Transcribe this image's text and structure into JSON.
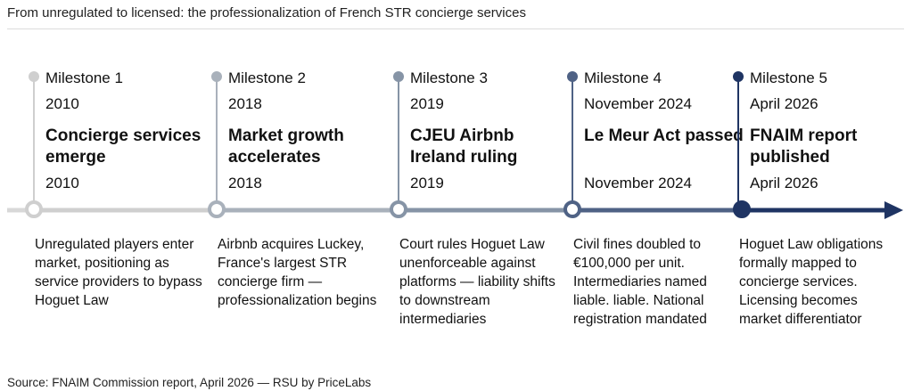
{
  "title": "From unregulated to licensed: the professionalization of French STR concierge services",
  "source": "Source: FNAIM Commission report, April 2026 — RSU by PriceLabs",
  "colors": {
    "m1": "#cfcfcf",
    "m2": "#a9b1bb",
    "m3": "#8694a6",
    "m4": "#4f6285",
    "m5": "#1f3463",
    "arrow": "#1f3463"
  },
  "milestones": [
    {
      "label": "Milestone 1",
      "year": "2010",
      "heading": "Concierge services emerge",
      "date": "2010",
      "description": "Unregulated players enter market, positioning as service providers to bypass Hoguet Law"
    },
    {
      "label": "Milestone 2",
      "year": "2018",
      "heading": "Market growth accelerates",
      "date": "2018",
      "description": "Airbnb acquires Luckey, France's largest STR concierge firm — professionalization begins"
    },
    {
      "label": "Milestone 3",
      "year": "2019",
      "heading": "CJEU Airbnb Ireland ruling",
      "date": "2019",
      "description": "Court rules Hoguet Law unenforceable against platforms — liability shifts to downstream intermediaries"
    },
    {
      "label": "Milestone 4",
      "year": "November 2024",
      "heading": "Le Meur Act passed",
      "date": "November 2024",
      "description": "Civil fines doubled to €100,000 per unit. Intermediaries named liable. liable. National registration mandated"
    },
    {
      "label": "Milestone 5",
      "year": "April 2026",
      "heading": "FNAIM report published",
      "date": "April 2026",
      "description": "Hoguet Law obligations formally mapped to concierge services. Licensing becomes market differentiator"
    }
  ]
}
